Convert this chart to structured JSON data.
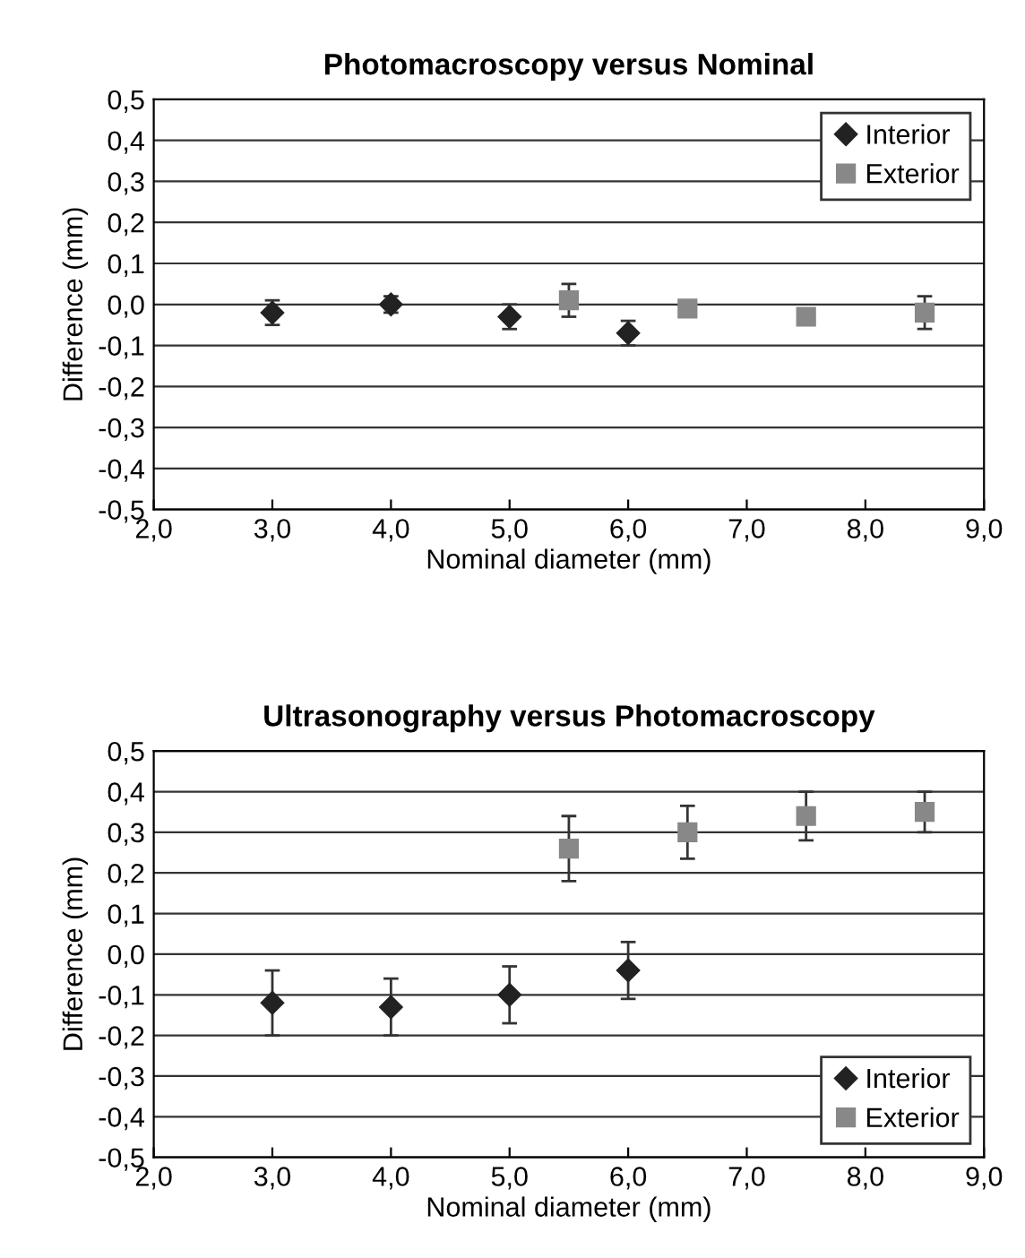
{
  "chart_data": [
    {
      "type": "scatter",
      "title": "Photomacroscopy versus Nominal",
      "xlabel": "Nominal diameter (mm)",
      "ylabel": "Difference (mm)",
      "xlim": [
        2,
        9
      ],
      "ylim": [
        -0.5,
        0.5
      ],
      "xticks": [
        {
          "value": 2,
          "label": "2,0"
        },
        {
          "value": 3,
          "label": "3,0"
        },
        {
          "value": 4,
          "label": "4,0"
        },
        {
          "value": 5,
          "label": "5,0"
        },
        {
          "value": 6,
          "label": "6,0"
        },
        {
          "value": 7,
          "label": "7,0"
        },
        {
          "value": 8,
          "label": "8,0"
        },
        {
          "value": 9,
          "label": "9,0"
        }
      ],
      "yticks": [
        {
          "value": -0.5,
          "label": "-0,5"
        },
        {
          "value": -0.4,
          "label": "-0,4"
        },
        {
          "value": -0.3,
          "label": "-0,3"
        },
        {
          "value": -0.2,
          "label": "-0,2"
        },
        {
          "value": -0.1,
          "label": "-0,1"
        },
        {
          "value": 0,
          "label": "0,0"
        },
        {
          "value": 0.1,
          "label": "0,1"
        },
        {
          "value": 0.2,
          "label": "0,2"
        },
        {
          "value": 0.3,
          "label": "0,3"
        },
        {
          "value": 0.4,
          "label": "0,4"
        },
        {
          "value": 0.5,
          "label": "0,5"
        }
      ],
      "grid": "y",
      "legend": "top right",
      "series": [
        {
          "name": "Interior",
          "color": "#222222",
          "marker": "diamond",
          "x": [
            3,
            4,
            5,
            6
          ],
          "values": [
            -0.02,
            0.0,
            -0.03,
            -0.07
          ],
          "errors": [
            0.03,
            0.02,
            0.03,
            0.03
          ]
        },
        {
          "name": "Exterior",
          "color": "#888888",
          "marker": "square",
          "x": [
            5.5,
            6.5,
            7.5,
            8.5
          ],
          "values": [
            0.01,
            -0.01,
            -0.03,
            -0.02
          ],
          "errors": [
            0.04,
            null,
            null,
            0.04
          ]
        }
      ]
    },
    {
      "type": "scatter",
      "title": "Ultrasonography versus Photomacroscopy",
      "xlabel": "Nominal diameter (mm)",
      "ylabel": "Difference (mm)",
      "xlim": [
        2,
        9
      ],
      "ylim": [
        -0.5,
        0.5
      ],
      "xticks": [
        {
          "value": 2,
          "label": "2,0"
        },
        {
          "value": 3,
          "label": "3,0"
        },
        {
          "value": 4,
          "label": "4,0"
        },
        {
          "value": 5,
          "label": "5,0"
        },
        {
          "value": 6,
          "label": "6,0"
        },
        {
          "value": 7,
          "label": "7,0"
        },
        {
          "value": 8,
          "label": "8,0"
        },
        {
          "value": 9,
          "label": "9,0"
        }
      ],
      "yticks": [
        {
          "value": -0.5,
          "label": "-0,5"
        },
        {
          "value": -0.4,
          "label": "-0,4"
        },
        {
          "value": -0.3,
          "label": "-0,3"
        },
        {
          "value": -0.2,
          "label": "-0,2"
        },
        {
          "value": -0.1,
          "label": "-0,1"
        },
        {
          "value": 0,
          "label": "0,0"
        },
        {
          "value": 0.1,
          "label": "0,1"
        },
        {
          "value": 0.2,
          "label": "0,2"
        },
        {
          "value": 0.3,
          "label": "0,3"
        },
        {
          "value": 0.4,
          "label": "0,4"
        },
        {
          "value": 0.5,
          "label": "0,5"
        }
      ],
      "grid": "y",
      "legend": "bottom right",
      "series": [
        {
          "name": "Interior",
          "color": "#222222",
          "marker": "diamond",
          "x": [
            3,
            4,
            5,
            6
          ],
          "values": [
            -0.12,
            -0.13,
            -0.1,
            -0.04
          ],
          "errors": [
            0.08,
            0.07,
            0.07,
            0.07
          ]
        },
        {
          "name": "Exterior",
          "color": "#888888",
          "marker": "square",
          "x": [
            5.5,
            6.5,
            7.5,
            8.5
          ],
          "values": [
            0.26,
            0.3,
            0.34,
            0.35
          ],
          "errors": [
            0.08,
            0.065,
            0.06,
            0.05
          ]
        }
      ]
    }
  ]
}
